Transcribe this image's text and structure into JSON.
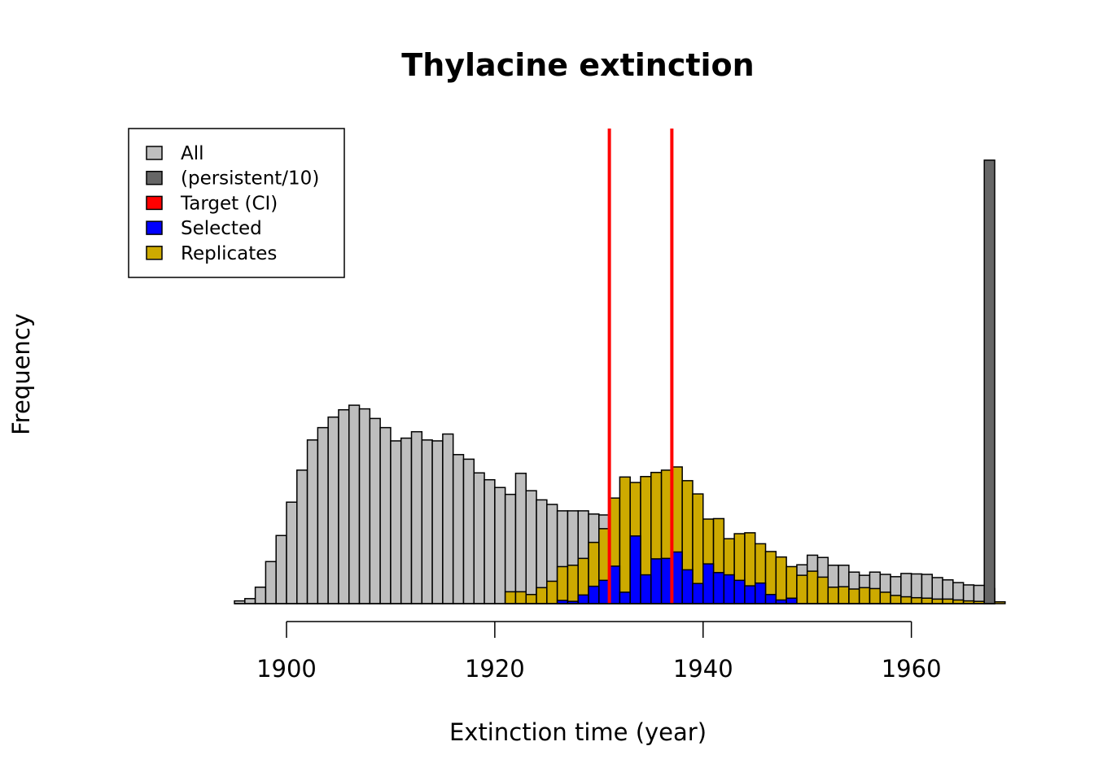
{
  "chart_data": {
    "type": "bar",
    "title": "Thylacine extinction",
    "xlabel": "Extinction time (year)",
    "ylabel": "Frequency",
    "xlim": [
      1895,
      1968
    ],
    "ylim": [
      0,
      1
    ],
    "x_ticks": [
      "1900",
      "1920",
      "1940",
      "1960"
    ],
    "bin_start": 1895,
    "bin_width": 1,
    "grid": false,
    "legend": {
      "position": "top-left",
      "entries": [
        {
          "label": "All",
          "color": "#bebebe"
        },
        {
          "label": "(persistent/10)",
          "color": "#666666"
        },
        {
          "label": "Target (CI)",
          "color": "#ff0000"
        },
        {
          "label": "Selected",
          "color": "#0000ff"
        },
        {
          "label": "Replicates",
          "color": "#cdaa00"
        }
      ]
    },
    "series": [
      {
        "name": "All",
        "color": "#bebebe",
        "values": [
          0.006,
          0.011,
          0.036,
          0.092,
          0.149,
          0.222,
          0.292,
          0.358,
          0.385,
          0.408,
          0.424,
          0.434,
          0.426,
          0.405,
          0.385,
          0.356,
          0.362,
          0.376,
          0.358,
          0.356,
          0.371,
          0.326,
          0.316,
          0.286,
          0.271,
          0.254,
          0.239,
          0.285,
          0.247,
          0.227,
          0.217,
          0.203,
          0.203,
          0.203,
          0.196,
          0.194,
          0.205,
          0.212,
          0.165,
          0.143,
          0.14,
          0.124,
          0.112,
          0.113,
          0.114,
          0.107,
          0.099,
          0.092,
          0.091,
          0.09,
          0.095,
          0.095,
          0.085,
          0.076,
          0.085,
          0.106,
          0.101,
          0.084,
          0.084,
          0.069,
          0.062,
          0.069,
          0.064,
          0.059,
          0.066,
          0.065,
          0.064,
          0.057,
          0.052,
          0.046,
          0.041,
          0.04,
          0.033
        ]
      },
      {
        "name": "(persistent/10)",
        "color": "#666666",
        "bin": 1967,
        "values": [
          0.97
        ]
      },
      {
        "name": "Replicates",
        "color": "#cdaa00",
        "bin_start": 1921,
        "values": [
          0.026,
          0.026,
          0.02,
          0.035,
          0.049,
          0.081,
          0.084,
          0.099,
          0.134,
          0.164,
          0.231,
          0.277,
          0.265,
          0.278,
          0.287,
          0.292,
          0.299,
          0.269,
          0.24,
          0.185,
          0.186,
          0.142,
          0.153,
          0.155,
          0.131,
          0.114,
          0.102,
          0.081,
          0.062,
          0.071,
          0.058,
          0.036,
          0.037,
          0.032,
          0.035,
          0.033,
          0.025,
          0.018,
          0.015,
          0.013,
          0.012,
          0.01,
          0.01,
          0.008,
          0.006,
          0.005,
          0.004,
          0.004
        ]
      },
      {
        "name": "Selected",
        "color": "#0000ff",
        "bin_start": 1926,
        "values": [
          0.007,
          0.005,
          0.019,
          0.038,
          0.051,
          0.082,
          0.025,
          0.148,
          0.063,
          0.098,
          0.099,
          0.113,
          0.074,
          0.044,
          0.087,
          0.068,
          0.063,
          0.051,
          0.039,
          0.045,
          0.02,
          0.008,
          0.012
        ]
      }
    ],
    "target_ci": {
      "name": "Target (CI)",
      "color": "#ff0000",
      "values": [
        1931,
        1937
      ]
    }
  }
}
